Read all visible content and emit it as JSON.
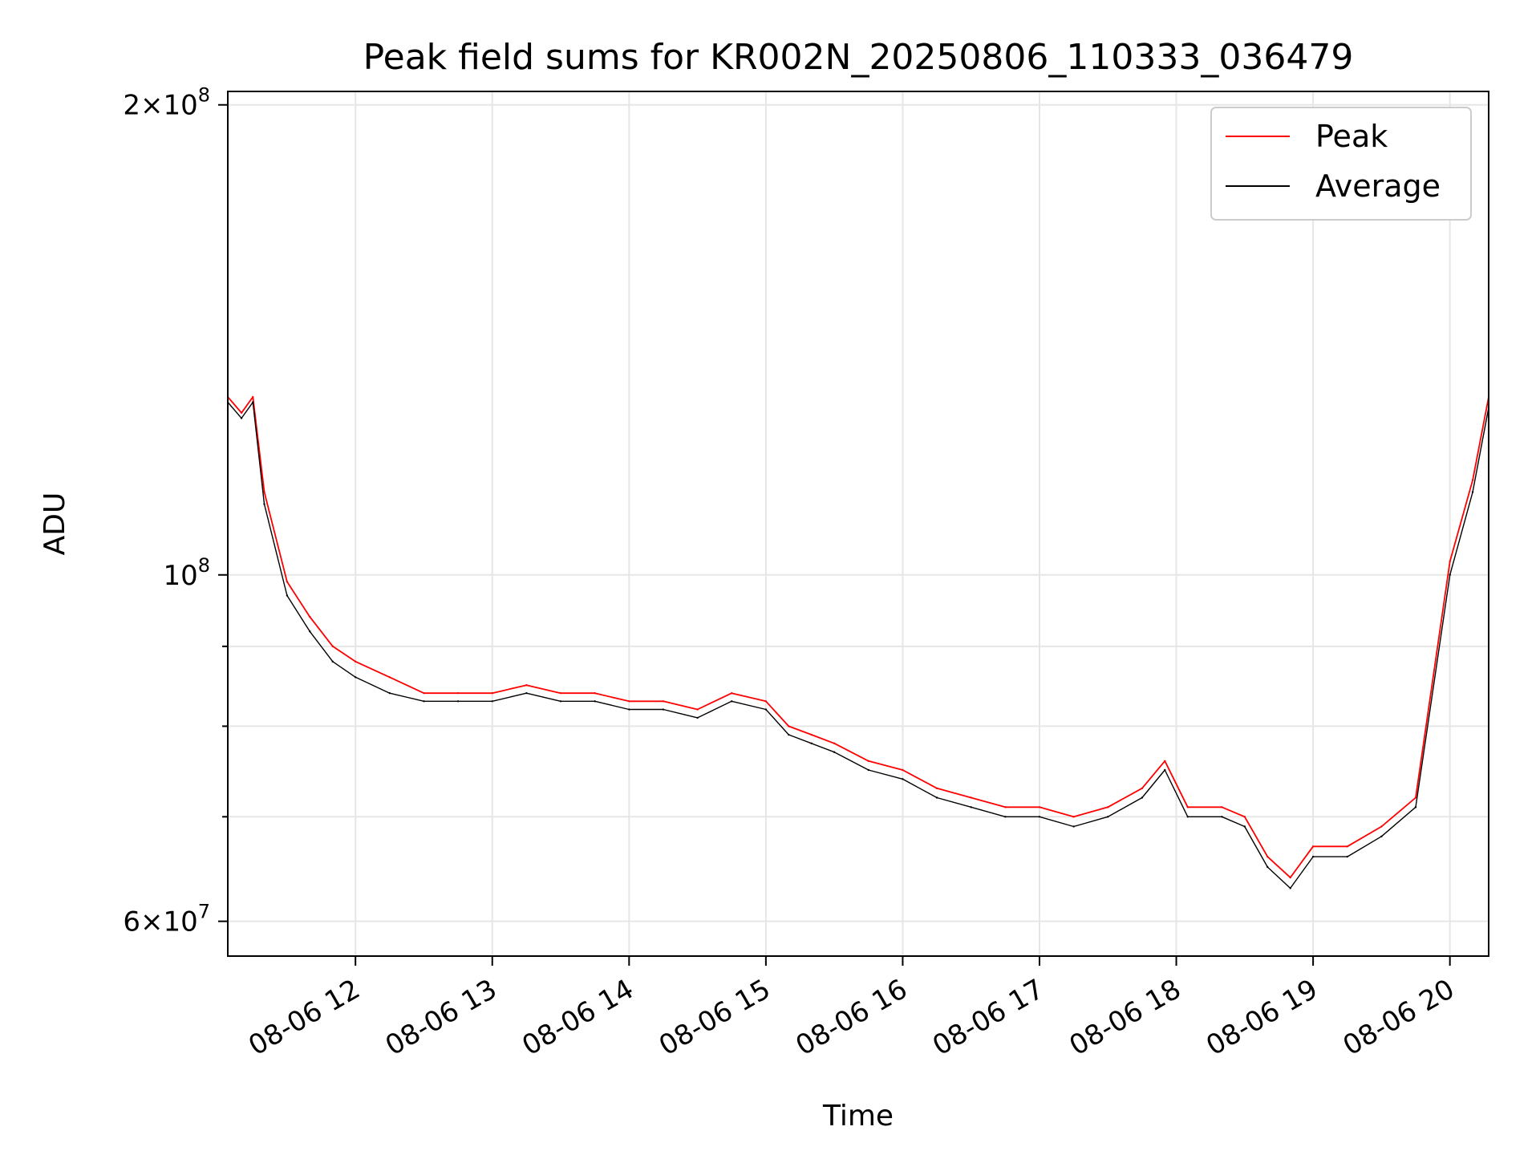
{
  "chart_data": {
    "type": "line",
    "title": "Peak field sums for KR002N_20250806_110333_036479",
    "xlabel": "Time",
    "ylabel": "ADU",
    "y_scale": "log",
    "ylim": [
      57000000,
      204000000
    ],
    "xlim": [
      "08-06 11:04",
      "08-06 20:17"
    ],
    "grid": true,
    "legend_position": "top-right",
    "x_ticks": [
      "08-06 12",
      "08-06 13",
      "08-06 14",
      "08-06 15",
      "08-06 16",
      "08-06 17",
      "08-06 18",
      "08-06 19",
      "08-06 20"
    ],
    "y_ticks": [
      {
        "base": "2",
        "exp": "8",
        "value": 200000000
      },
      {
        "base": "",
        "exp": "8",
        "value": 100000000
      },
      {
        "base": "6",
        "exp": "7",
        "value": 60000000
      }
    ],
    "y_minor_ticks": [
      70000000,
      80000000,
      90000000
    ],
    "colors": {
      "peak": "#ff0000",
      "average": "#000000"
    },
    "series": [
      {
        "name": "Peak",
        "color": "#ff0000",
        "x": [
          "08-06 11:04",
          "08-06 11:10",
          "08-06 11:15",
          "08-06 11:20",
          "08-06 11:30",
          "08-06 11:40",
          "08-06 11:50",
          "08-06 12:00",
          "08-06 12:15",
          "08-06 12:30",
          "08-06 12:45",
          "08-06 13:00",
          "08-06 13:15",
          "08-06 13:30",
          "08-06 13:45",
          "08-06 14:00",
          "08-06 14:15",
          "08-06 14:30",
          "08-06 14:45",
          "08-06 15:00",
          "08-06 15:10",
          "08-06 15:20",
          "08-06 15:30",
          "08-06 15:45",
          "08-06 16:00",
          "08-06 16:15",
          "08-06 16:30",
          "08-06 16:45",
          "08-06 17:00",
          "08-06 17:15",
          "08-06 17:30",
          "08-06 17:45",
          "08-06 17:55",
          "08-06 18:05",
          "08-06 18:20",
          "08-06 18:30",
          "08-06 18:40",
          "08-06 18:50",
          "08-06 19:00",
          "08-06 19:15",
          "08-06 19:30",
          "08-06 19:45",
          "08-06 20:00",
          "08-06 20:10",
          "08-06 20:17"
        ],
        "values": [
          130000000,
          127000000,
          130000000,
          113000000,
          99000000,
          94000000,
          90000000,
          88000000,
          86000000,
          84000000,
          84000000,
          84000000,
          85000000,
          84000000,
          84000000,
          83000000,
          83000000,
          82000000,
          84000000,
          83000000,
          80000000,
          79000000,
          78000000,
          76000000,
          75000000,
          73000000,
          72000000,
          71000000,
          71000000,
          70000000,
          71000000,
          73000000,
          76000000,
          71000000,
          71000000,
          70000000,
          66000000,
          64000000,
          67000000,
          67000000,
          69000000,
          72000000,
          102000000,
          115000000,
          130000000
        ]
      },
      {
        "name": "Average",
        "color": "#000000",
        "x": [
          "08-06 11:04",
          "08-06 11:10",
          "08-06 11:15",
          "08-06 11:20",
          "08-06 11:30",
          "08-06 11:40",
          "08-06 11:50",
          "08-06 12:00",
          "08-06 12:15",
          "08-06 12:30",
          "08-06 12:45",
          "08-06 13:00",
          "08-06 13:15",
          "08-06 13:30",
          "08-06 13:45",
          "08-06 14:00",
          "08-06 14:15",
          "08-06 14:30",
          "08-06 14:45",
          "08-06 15:00",
          "08-06 15:10",
          "08-06 15:20",
          "08-06 15:30",
          "08-06 15:45",
          "08-06 16:00",
          "08-06 16:15",
          "08-06 16:30",
          "08-06 16:45",
          "08-06 17:00",
          "08-06 17:15",
          "08-06 17:30",
          "08-06 17:45",
          "08-06 17:55",
          "08-06 18:05",
          "08-06 18:20",
          "08-06 18:30",
          "08-06 18:40",
          "08-06 18:50",
          "08-06 19:00",
          "08-06 19:15",
          "08-06 19:30",
          "08-06 19:45",
          "08-06 20:00",
          "08-06 20:10",
          "08-06 20:17"
        ],
        "values": [
          129000000,
          126000000,
          129000000,
          111000000,
          97000000,
          92000000,
          88000000,
          86000000,
          84000000,
          83000000,
          83000000,
          83000000,
          84000000,
          83000000,
          83000000,
          82000000,
          82000000,
          81000000,
          83000000,
          82000000,
          79000000,
          78000000,
          77000000,
          75000000,
          74000000,
          72000000,
          71000000,
          70000000,
          70000000,
          69000000,
          70000000,
          72000000,
          75000000,
          70000000,
          70000000,
          69000000,
          65000000,
          63000000,
          66000000,
          66000000,
          68000000,
          71000000,
          100000000,
          113000000,
          128000000
        ]
      }
    ]
  }
}
